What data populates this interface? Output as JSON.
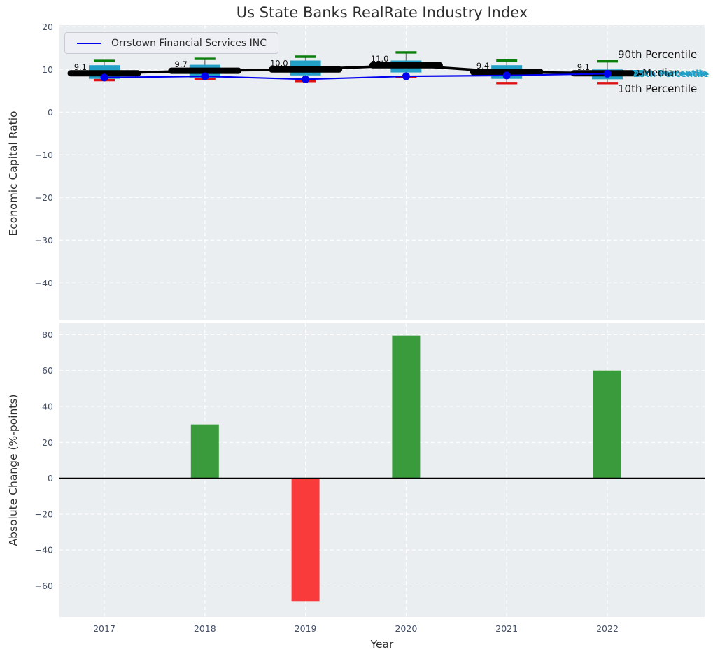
{
  "title": "Us State Banks RealRate Industry Index",
  "legend_label": "Orrstown Financial Services INC",
  "axis_labels": {
    "top_y": "Economic Capital Ratio",
    "bottom_y": "Absolute Change (%-points)",
    "x": "Year"
  },
  "percentile_labels": {
    "p90": "90th Percentile",
    "p75": "75th Percentile",
    "median": "Median",
    "p25": "25th Percentile",
    "p10": "10th Percentile"
  },
  "colors": {
    "plot_bg": "#ebeef0",
    "grid": "#ffffff",
    "box_fill": "#22a0c8",
    "whisker": "#7a7a7a",
    "p90_cap": "#0a7d0a",
    "p10_cap": "#dd1111",
    "median_line": "#000000",
    "company_line": "#0000ee",
    "bar_positive": "#3a9b3c",
    "bar_negative": "#fa3b3c",
    "tick_label": "#44506a",
    "value_label": "#111111",
    "zero_line": "#000000"
  },
  "chart_data": [
    {
      "type": "boxplot",
      "title": "Us State Banks RealRate Industry Index",
      "ylabel": "Economic Capital Ratio",
      "categories": [
        "2017",
        "2018",
        "2019",
        "2020",
        "2021",
        "2022"
      ],
      "yticks": [
        20,
        10,
        0,
        -10,
        -20,
        -30,
        -40
      ],
      "ylim": [
        -49,
        20.4
      ],
      "grid": true,
      "legend_position": "upper left",
      "series": [
        {
          "name": "90th Percentile",
          "values": [
            12.0,
            12.5,
            13.0,
            14.0,
            12.1,
            11.9
          ]
        },
        {
          "name": "75th Percentile",
          "values": [
            11.0,
            11.1,
            12.1,
            12.1,
            11.0,
            10.0
          ]
        },
        {
          "name": "Median",
          "values": [
            9.1,
            9.7,
            10.0,
            11.0,
            9.4,
            9.1
          ]
        },
        {
          "name": "25th Percentile",
          "values": [
            7.8,
            8.1,
            8.6,
            9.3,
            7.8,
            7.7
          ]
        },
        {
          "name": "10th Percentile",
          "values": [
            7.5,
            7.7,
            7.3,
            8.3,
            6.8,
            6.8
          ]
        },
        {
          "name": "Orrstown Financial Services INC",
          "values": [
            8.1,
            8.4,
            7.7,
            8.4,
            8.6,
            9.0
          ]
        }
      ],
      "median_labels": [
        "9.1",
        "9.7",
        "10.0",
        "11.0",
        "9.4",
        "9.1"
      ]
    },
    {
      "type": "bar",
      "ylabel": "Absolute Change (%-points)",
      "xlabel": "Year",
      "categories": [
        "2017",
        "2018",
        "2019",
        "2020",
        "2021",
        "2022"
      ],
      "values": [
        0,
        30,
        -68.5,
        79.5,
        0,
        60
      ],
      "yticks": [
        80,
        60,
        40,
        20,
        0,
        -20,
        -40,
        -60
      ],
      "ylim": [
        -77,
        86
      ],
      "grid": true
    }
  ]
}
